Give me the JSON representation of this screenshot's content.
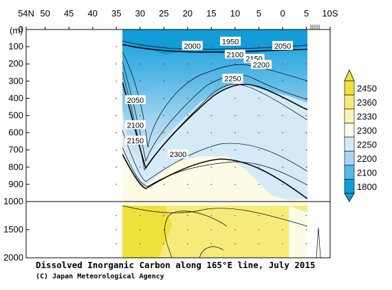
{
  "chart_data": {
    "type": "heatmap",
    "title": "Dissolved Inorganic Carbon along 165°E line, July 2015",
    "credit": "(C) Japan Meteorological Agency",
    "y_unit": "(m)",
    "x_tick_labels": [
      "54N",
      "50",
      "45",
      "40",
      "35",
      "30",
      "25",
      "20",
      "15",
      "10",
      "5",
      "0",
      "5",
      "10S"
    ],
    "x_tick_lat": [
      54,
      50,
      45,
      40,
      35,
      30,
      25,
      20,
      15,
      10,
      5,
      0,
      -5,
      -10
    ],
    "xlim_lat": [
      54,
      -10
    ],
    "section_lat_range": [
      35,
      -5
    ],
    "y_tick_labels_upper": [
      "0",
      "100",
      "200",
      "300",
      "400",
      "500",
      "600",
      "700",
      "800",
      "900",
      "1000"
    ],
    "y_tick_values_upper": [
      0,
      100,
      200,
      300,
      400,
      500,
      600,
      700,
      800,
      900,
      1000
    ],
    "y_tick_labels_lower": [
      "1500",
      "2000"
    ],
    "y_tick_values_lower": [
      1500,
      2000
    ],
    "ylim_m": [
      0,
      2000
    ],
    "colorbar": {
      "levels": [
        "2450",
        "2360",
        "2330",
        "2300",
        "2250",
        "2200",
        "2100",
        "1800"
      ],
      "colors": [
        "#f0e03c",
        "#f6eb7a",
        "#faf4b8",
        "#fcfbe6",
        "#d4eaf6",
        "#a8d6f0",
        "#56b8e6",
        "#129cd8"
      ]
    },
    "contour_labels": [
      {
        "text": "1950",
        "lat": 11,
        "depth_m": 70
      },
      {
        "text": "2000",
        "lat": 19,
        "depth_m": 95
      },
      {
        "text": "2050",
        "lat": 0,
        "depth_m": 95
      },
      {
        "text": "2100",
        "lat": 10,
        "depth_m": 145
      },
      {
        "text": "2150",
        "lat": 6,
        "depth_m": 170
      },
      {
        "text": "2200",
        "lat": 4.5,
        "depth_m": 205
      },
      {
        "text": "2250",
        "lat": 10.5,
        "depth_m": 285
      },
      {
        "text": "2050",
        "lat": 31,
        "depth_m": 410
      },
      {
        "text": "2100",
        "lat": 31,
        "depth_m": 555
      },
      {
        "text": "2150",
        "lat": 31,
        "depth_m": 645
      },
      {
        "text": "2300",
        "lat": 22,
        "depth_m": 725
      }
    ]
  }
}
